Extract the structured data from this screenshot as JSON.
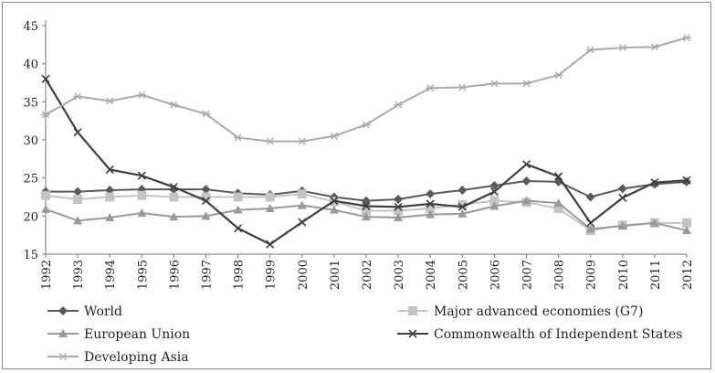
{
  "chart_data": {
    "type": "line",
    "title": "",
    "xlabel": "",
    "ylabel": "",
    "ylim": [
      15,
      45
    ],
    "yticks": [
      15,
      20,
      25,
      30,
      35,
      40,
      45
    ],
    "x": [
      "1992",
      "1993",
      "1994",
      "1995",
      "1996",
      "1997",
      "1998",
      "1999",
      "2000",
      "2001",
      "2002",
      "2003",
      "2004",
      "2005",
      "2006",
      "2007",
      "2008",
      "2009",
      "2010",
      "2011",
      "2012"
    ],
    "grid": false,
    "legend": "bottom",
    "series": [
      {
        "name": "World",
        "color": "#5a5a5a",
        "marker": "diamond",
        "values": [
          23.2,
          23.2,
          23.4,
          23.5,
          23.5,
          23.5,
          23.0,
          22.8,
          23.3,
          22.5,
          22.0,
          22.2,
          22.9,
          23.4,
          24.0,
          24.6,
          24.5,
          22.5,
          23.6,
          24.2,
          24.5
        ]
      },
      {
        "name": "Major advanced economies (G7)",
        "color": "#c4c4c4",
        "marker": "square",
        "values": [
          22.7,
          22.2,
          22.5,
          22.7,
          22.5,
          22.5,
          22.5,
          22.5,
          22.9,
          21.9,
          20.7,
          20.7,
          21.0,
          21.5,
          22.0,
          21.8,
          21.0,
          18.1,
          18.8,
          19.1,
          19.1
        ]
      },
      {
        "name": "European Union",
        "color": "#999999",
        "marker": "triangle",
        "values": [
          20.9,
          19.4,
          19.8,
          20.4,
          19.9,
          20.0,
          20.8,
          21.0,
          21.4,
          20.8,
          19.9,
          19.8,
          20.2,
          20.3,
          21.3,
          22.0,
          21.7,
          18.3,
          18.7,
          19.1,
          18.1
        ]
      },
      {
        "name": "Commonwealth of Independent States",
        "color": "#3f3f3f",
        "marker": "x",
        "values": [
          38.0,
          31.0,
          26.1,
          25.3,
          23.8,
          22.0,
          18.4,
          16.3,
          19.2,
          22.0,
          21.3,
          21.2,
          21.6,
          21.2,
          23.2,
          26.8,
          25.2,
          19.1,
          22.4,
          24.4,
          24.7
        ]
      },
      {
        "name": "Developing Asia",
        "color": "#aaaaaa",
        "marker": "star",
        "values": [
          33.3,
          35.7,
          35.1,
          35.9,
          34.6,
          33.4,
          30.3,
          29.8,
          29.8,
          30.5,
          32.0,
          34.6,
          36.8,
          36.9,
          37.4,
          37.4,
          38.5,
          41.8,
          42.1,
          42.2,
          43.4
        ]
      }
    ]
  }
}
